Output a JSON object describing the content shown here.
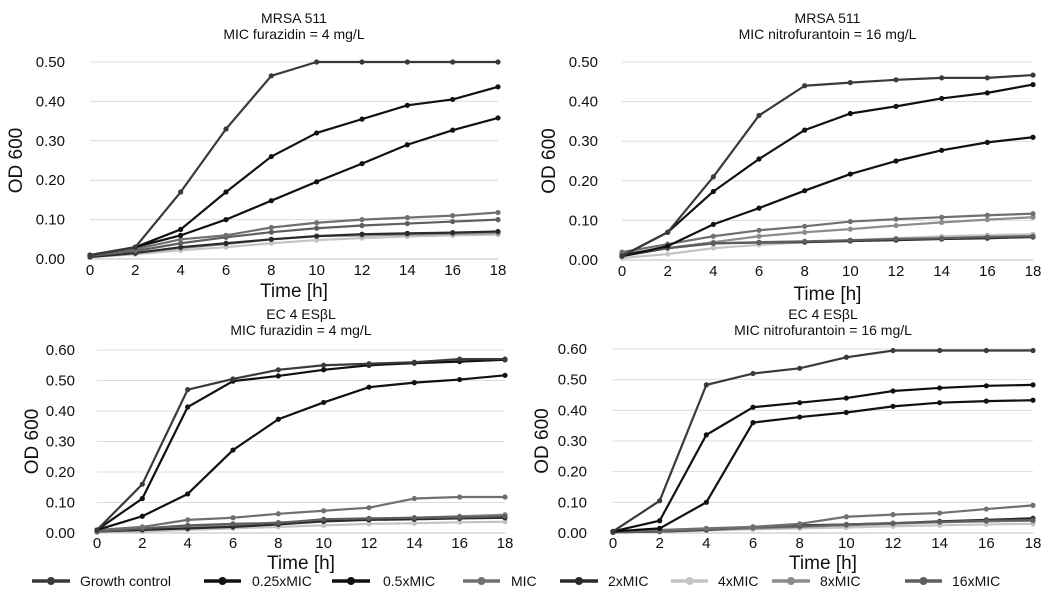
{
  "x_axis_label": "Time [h]",
  "y_axis_label": "OD 600",
  "series_colors": {
    "Growth control": "#3a3a3a",
    "0.25xMIC": "#111111",
    "0.5xMIC": "#111111",
    "MIC": "#707070",
    "2xMIC": "#2a2a2a",
    "4xMIC": "#c4c4c4",
    "8xMIC": "#8c8c8c",
    "16xMIC": "#5e5e5e"
  },
  "legend": [
    "Growth control",
    "0.25xMIC",
    "0.5xMIC",
    "MIC",
    "2xMIC",
    "4xMIC",
    "8xMIC",
    "16xMIC"
  ],
  "chart_data": [
    {
      "type": "line",
      "title": "MRSA 511",
      "subtitle": "MIC furazidin = 4 mg/L",
      "xlabel": "Time [h]",
      "ylabel": "OD 600",
      "x": [
        0,
        2,
        4,
        6,
        8,
        10,
        12,
        14,
        16,
        18
      ],
      "xlim": [
        0,
        18
      ],
      "ylim": [
        0,
        0.5
      ],
      "yticks": [
        "0.00",
        "0.10",
        "0.20",
        "0.30",
        "0.40",
        "0.50"
      ],
      "grid": true,
      "series": [
        {
          "name": "Growth control",
          "values": [
            0.01,
            0.03,
            0.17,
            0.33,
            0.465,
            0.5,
            0.5,
            0.5,
            0.5,
            0.5
          ]
        },
        {
          "name": "0.25xMIC",
          "values": [
            0.01,
            0.03,
            0.075,
            0.17,
            0.26,
            0.32,
            0.355,
            0.39,
            0.405,
            0.437
          ]
        },
        {
          "name": "0.5xMIC",
          "values": [
            0.01,
            0.03,
            0.06,
            0.1,
            0.148,
            0.196,
            0.242,
            0.29,
            0.327,
            0.358
          ]
        },
        {
          "name": "MIC",
          "values": [
            0.01,
            0.025,
            0.05,
            0.06,
            0.08,
            0.092,
            0.1,
            0.105,
            0.11,
            0.118
          ]
        },
        {
          "name": "2xMIC",
          "values": [
            0.005,
            0.015,
            0.03,
            0.04,
            0.05,
            0.058,
            0.063,
            0.065,
            0.067,
            0.07
          ]
        },
        {
          "name": "4xMIC",
          "values": [
            0.005,
            0.012,
            0.022,
            0.03,
            0.04,
            0.048,
            0.053,
            0.057,
            0.06,
            0.062
          ]
        },
        {
          "name": "8xMIC",
          "values": [
            0.005,
            0.015,
            0.028,
            0.038,
            0.05,
            0.058,
            0.06,
            0.062,
            0.064,
            0.066
          ]
        },
        {
          "name": "16xMIC",
          "values": [
            0.008,
            0.02,
            0.04,
            0.055,
            0.068,
            0.078,
            0.085,
            0.09,
            0.095,
            0.1
          ]
        }
      ]
    },
    {
      "type": "line",
      "title": "MRSA 511",
      "subtitle": "MIC nitrofurantoin = 16 mg/L",
      "xlabel": "Time [h]",
      "ylabel": "OD 600",
      "x": [
        0,
        2,
        4,
        6,
        8,
        10,
        12,
        14,
        16,
        18
      ],
      "xlim": [
        0,
        18
      ],
      "ylim": [
        0,
        0.5
      ],
      "yticks": [
        "0.00",
        "0.10",
        "0.20",
        "0.30",
        "0.40",
        "0.50"
      ],
      "grid": true,
      "series": [
        {
          "name": "Growth control",
          "values": [
            0.01,
            0.07,
            0.21,
            0.365,
            0.44,
            0.448,
            0.455,
            0.46,
            0.46,
            0.467
          ]
        },
        {
          "name": "0.25xMIC",
          "values": [
            0.01,
            0.07,
            0.173,
            0.255,
            0.328,
            0.37,
            0.388,
            0.408,
            0.422,
            0.443
          ]
        },
        {
          "name": "0.5xMIC",
          "values": [
            0.01,
            0.035,
            0.09,
            0.131,
            0.175,
            0.217,
            0.25,
            0.277,
            0.297,
            0.31
          ]
        },
        {
          "name": "MIC",
          "values": [
            0.02,
            0.04,
            0.06,
            0.075,
            0.085,
            0.097,
            0.103,
            0.108,
            0.113,
            0.117
          ]
        },
        {
          "name": "2xMIC",
          "values": [
            0.01,
            0.03,
            0.042,
            0.044,
            0.045,
            0.048,
            0.05,
            0.053,
            0.055,
            0.058
          ]
        },
        {
          "name": "4xMIC",
          "values": [
            0.005,
            0.015,
            0.03,
            0.038,
            0.045,
            0.05,
            0.055,
            0.06,
            0.063,
            0.065
          ]
        },
        {
          "name": "8xMIC",
          "values": [
            0.01,
            0.03,
            0.045,
            0.06,
            0.07,
            0.078,
            0.087,
            0.095,
            0.102,
            0.108
          ]
        },
        {
          "name": "16xMIC",
          "values": [
            0.015,
            0.03,
            0.042,
            0.045,
            0.047,
            0.05,
            0.053,
            0.055,
            0.058,
            0.06
          ]
        }
      ]
    },
    {
      "type": "line",
      "title": "EC 4 ESβL",
      "subtitle": "MIC furazidin = 4 mg/L",
      "xlabel": "Time [h]",
      "ylabel": "OD 600",
      "x": [
        0,
        2,
        4,
        6,
        8,
        10,
        12,
        14,
        16,
        18
      ],
      "xlim": [
        0,
        18
      ],
      "ylim": [
        0,
        0.6
      ],
      "yticks": [
        "0.00",
        "0.10",
        "0.20",
        "0.30",
        "0.40",
        "0.50",
        "0.60"
      ],
      "grid": true,
      "series": [
        {
          "name": "Growth control",
          "values": [
            0.01,
            0.16,
            0.47,
            0.505,
            0.535,
            0.55,
            0.555,
            0.56,
            0.57,
            0.57
          ]
        },
        {
          "name": "0.25xMIC",
          "values": [
            0.01,
            0.113,
            0.413,
            0.498,
            0.515,
            0.535,
            0.55,
            0.557,
            0.562,
            0.568
          ]
        },
        {
          "name": "0.5xMIC",
          "values": [
            0.01,
            0.055,
            0.128,
            0.272,
            0.373,
            0.428,
            0.478,
            0.493,
            0.503,
            0.517
          ]
        },
        {
          "name": "MIC",
          "values": [
            0.01,
            0.02,
            0.043,
            0.05,
            0.063,
            0.073,
            0.083,
            0.113,
            0.118,
            0.118
          ]
        },
        {
          "name": "2xMIC",
          "values": [
            0.005,
            0.01,
            0.015,
            0.02,
            0.028,
            0.038,
            0.043,
            0.045,
            0.048,
            0.05
          ]
        },
        {
          "name": "4xMIC",
          "values": [
            0.002,
            0.005,
            0.01,
            0.015,
            0.02,
            0.025,
            0.03,
            0.032,
            0.035,
            0.037
          ]
        },
        {
          "name": "8xMIC",
          "values": [
            0.005,
            0.012,
            0.02,
            0.025,
            0.035,
            0.04,
            0.045,
            0.05,
            0.055,
            0.06
          ]
        },
        {
          "name": "16xMIC",
          "values": [
            0.005,
            0.015,
            0.025,
            0.03,
            0.033,
            0.045,
            0.048,
            0.05,
            0.052,
            0.055
          ]
        }
      ]
    },
    {
      "type": "line",
      "title": "EC 4 ESβL",
      "subtitle": "MIC nitrofurantoin = 16 mg/L",
      "xlabel": "Time [h]",
      "ylabel": "OD 600",
      "x": [
        0,
        2,
        4,
        6,
        8,
        10,
        12,
        14,
        16,
        18
      ],
      "xlim": [
        0,
        18
      ],
      "ylim": [
        0,
        0.6
      ],
      "yticks": [
        "0.00",
        "0.10",
        "0.20",
        "0.30",
        "0.40",
        "0.50",
        "0.60"
      ],
      "grid": true,
      "series": [
        {
          "name": "Growth control",
          "values": [
            0.005,
            0.105,
            0.483,
            0.52,
            0.537,
            0.573,
            0.595,
            0.595,
            0.595,
            0.595
          ]
        },
        {
          "name": "0.25xMIC",
          "values": [
            0.005,
            0.04,
            0.32,
            0.41,
            0.425,
            0.44,
            0.463,
            0.473,
            0.48,
            0.483
          ]
        },
        {
          "name": "0.5xMIC",
          "values": [
            0.005,
            0.015,
            0.1,
            0.36,
            0.378,
            0.393,
            0.413,
            0.425,
            0.43,
            0.433
          ]
        },
        {
          "name": "MIC",
          "values": [
            0.005,
            0.01,
            0.015,
            0.02,
            0.03,
            0.053,
            0.06,
            0.065,
            0.078,
            0.09
          ]
        },
        {
          "name": "2xMIC",
          "values": [
            0.002,
            0.005,
            0.01,
            0.02,
            0.025,
            0.028,
            0.032,
            0.038,
            0.043,
            0.048
          ]
        },
        {
          "name": "4xMIC",
          "values": [
            0.002,
            0.004,
            0.008,
            0.012,
            0.015,
            0.018,
            0.022,
            0.025,
            0.028,
            0.03
          ]
        },
        {
          "name": "8xMIC",
          "values": [
            0.002,
            0.005,
            0.01,
            0.015,
            0.02,
            0.025,
            0.03,
            0.035,
            0.038,
            0.04
          ]
        },
        {
          "name": "16xMIC",
          "values": [
            0.002,
            0.005,
            0.012,
            0.018,
            0.022,
            0.028,
            0.032,
            0.036,
            0.04,
            0.042
          ]
        }
      ]
    }
  ]
}
